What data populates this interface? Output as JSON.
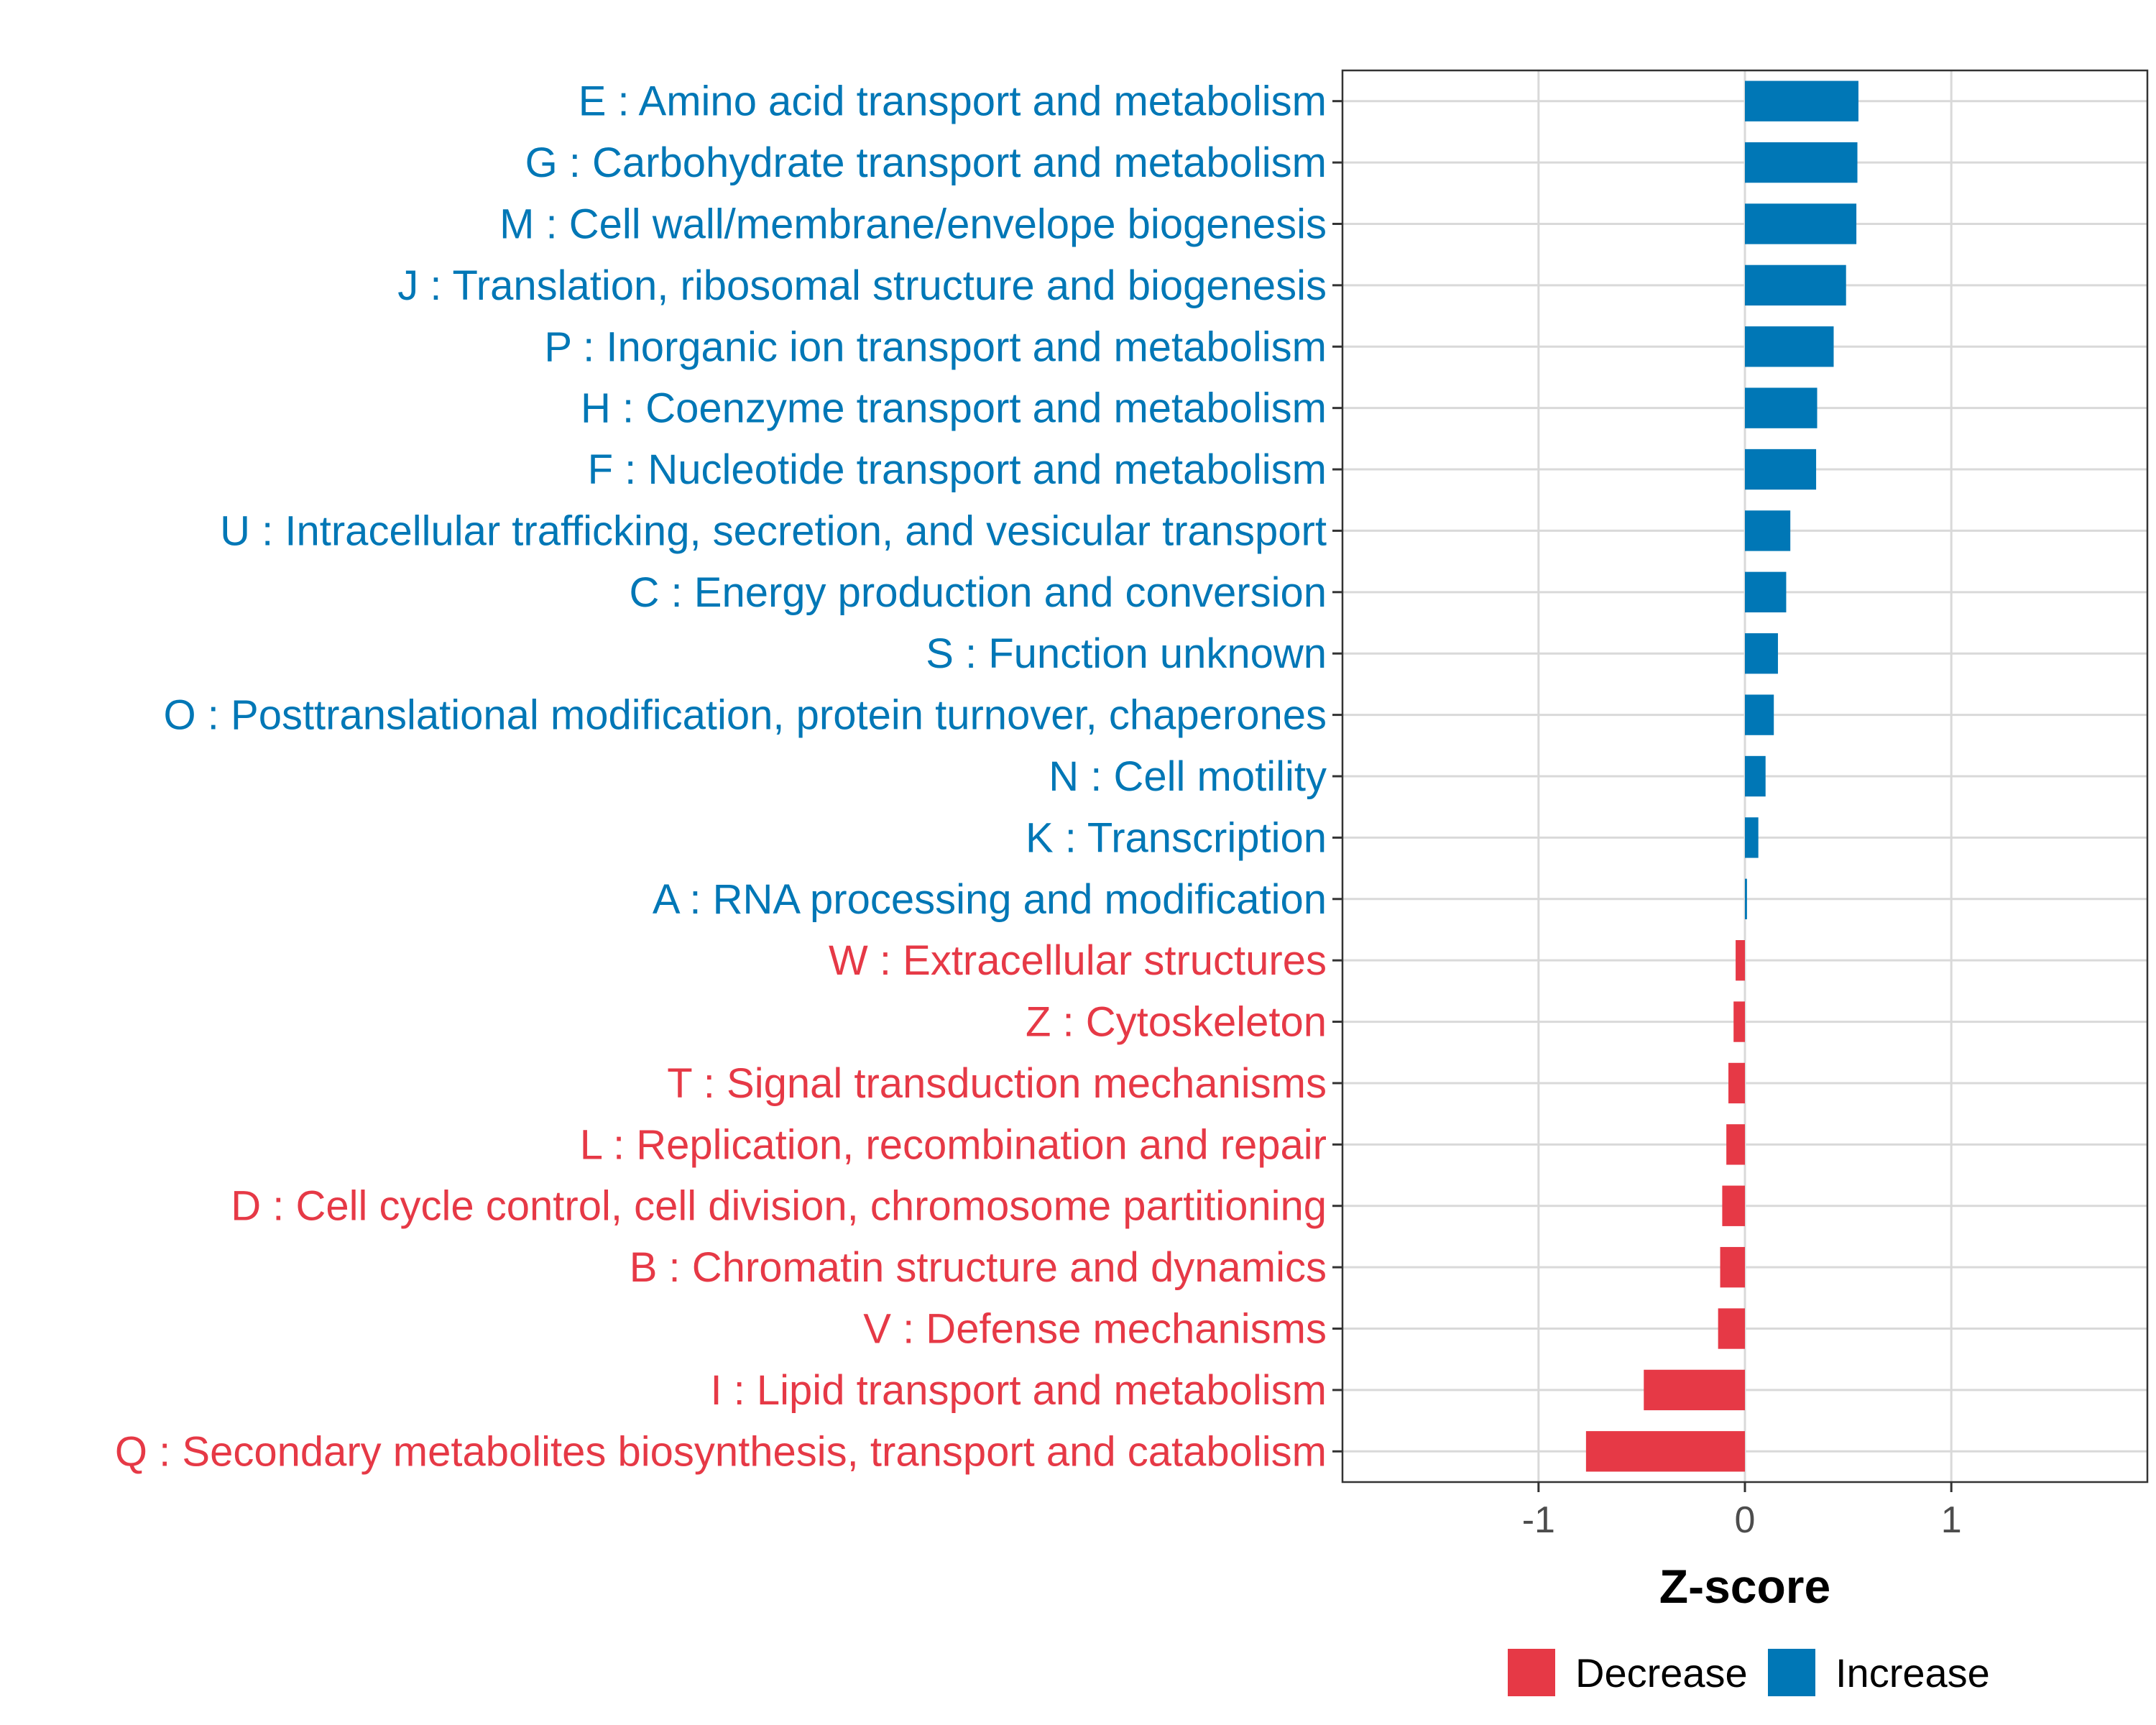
{
  "chart_data": {
    "type": "bar",
    "orientation": "horizontal",
    "title": "",
    "xlabel": "Z-score",
    "ylabel": "",
    "xlim": [
      -1.95,
      1.95
    ],
    "xticks": [
      -1,
      0,
      1
    ],
    "grid": true,
    "legend_position": "bottom",
    "colors": {
      "Decrease": "#E63946",
      "Increase": "#0077B6"
    },
    "legend": [
      {
        "name": "Decrease",
        "color": "#E63946"
      },
      {
        "name": "Increase",
        "color": "#0077B6"
      }
    ],
    "categories": [
      "E : Amino acid transport and metabolism",
      "G : Carbohydrate transport and metabolism",
      "M : Cell wall/membrane/envelope biogenesis",
      "J : Translation, ribosomal structure and biogenesis",
      "P : Inorganic ion transport and metabolism",
      "H : Coenzyme transport and metabolism",
      "F : Nucleotide transport and metabolism",
      "U : Intracellular trafficking, secretion, and vesicular transport",
      "C : Energy production and conversion",
      "S : Function unknown",
      "O : Posttranslational modification, protein turnover, chaperones",
      "N : Cell motility",
      "K : Transcription",
      "A : RNA processing and modification",
      "W : Extracellular structures",
      "Z : Cytoskeleton",
      "T : Signal transduction mechanisms",
      "L : Replication, recombination and repair",
      "D : Cell cycle control, cell division, chromosome partitioning",
      "B : Chromatin structure and dynamics",
      "V : Defense mechanisms",
      "I : Lipid transport and metabolism",
      "Q : Secondary metabolites biosynthesis, transport and catabolism"
    ],
    "values": [
      0.55,
      0.545,
      0.54,
      0.49,
      0.43,
      0.35,
      0.345,
      0.22,
      0.2,
      0.16,
      0.14,
      0.1,
      0.065,
      0.01,
      -0.045,
      -0.055,
      -0.08,
      -0.09,
      -0.11,
      -0.12,
      -0.13,
      -0.49,
      -0.77
    ],
    "direction": [
      "Increase",
      "Increase",
      "Increase",
      "Increase",
      "Increase",
      "Increase",
      "Increase",
      "Increase",
      "Increase",
      "Increase",
      "Increase",
      "Increase",
      "Increase",
      "Increase",
      "Decrease",
      "Decrease",
      "Decrease",
      "Decrease",
      "Decrease",
      "Decrease",
      "Decrease",
      "Decrease",
      "Decrease"
    ]
  }
}
